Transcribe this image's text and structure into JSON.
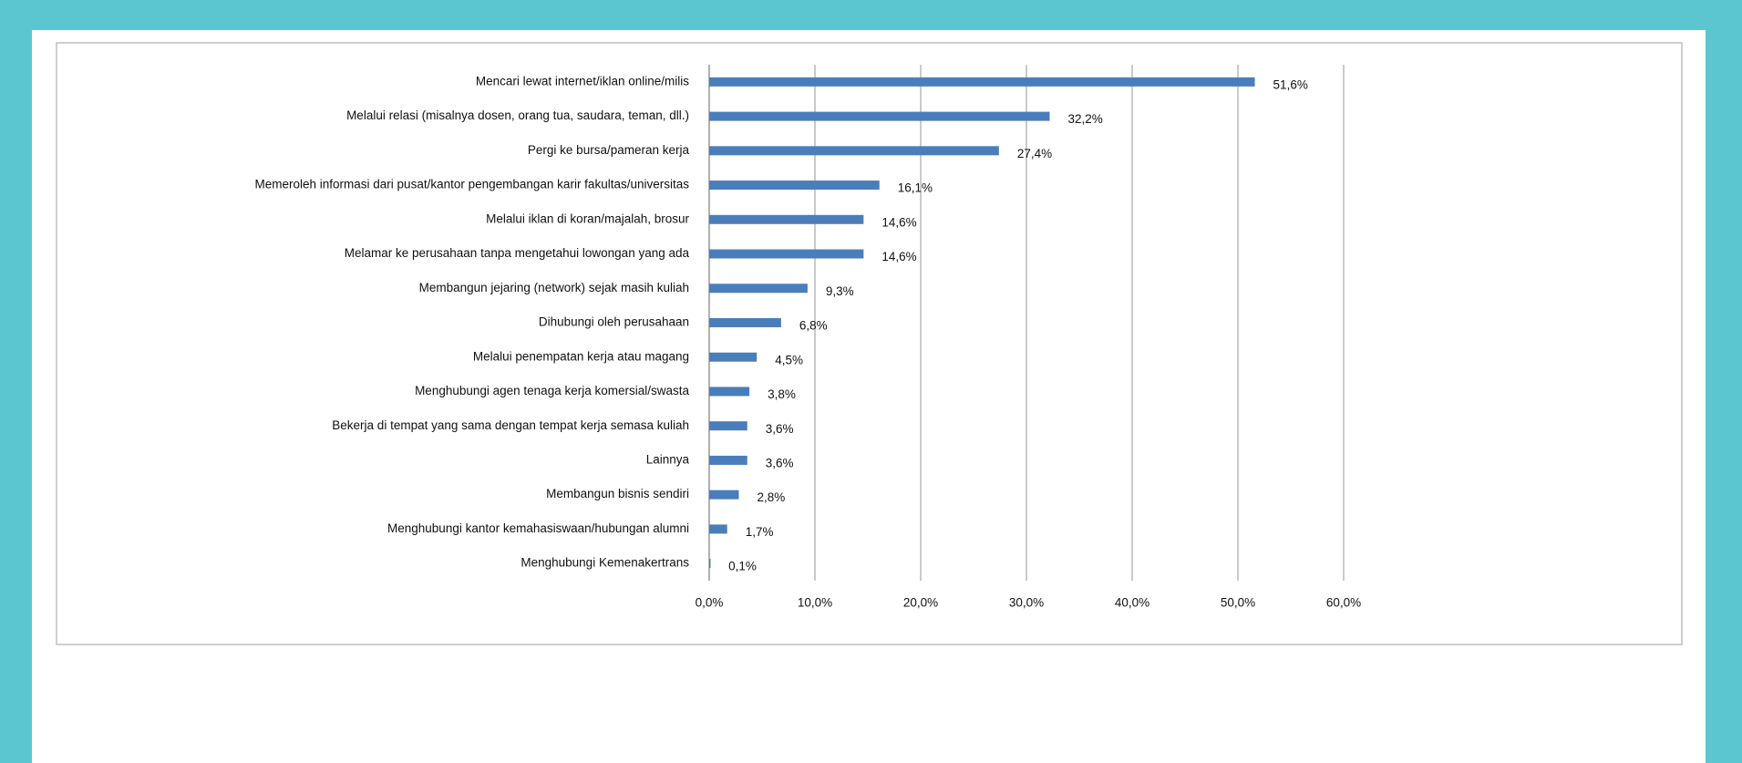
{
  "chart_data": {
    "type": "bar",
    "orientation": "horizontal",
    "categories": [
      "Mencari lewat internet/iklan online/milis",
      "Melalui relasi (misalnya dosen, orang tua, saudara, teman, dll.)",
      "Pergi ke bursa/pameran kerja",
      "Memeroleh informasi dari pusat/kantor  pengembangan karir fakultas/universitas",
      "Melalui iklan di koran/majalah,  brosur",
      "Melamar ke perusahaan tanpa mengetahui lowongan yang ada",
      "Membangun jejaring (network) sejak masih kuliah",
      "Dihubungi oleh perusahaan",
      "Melalui penempatan kerja atau magang",
      "Menghubungi agen tenaga kerja komersial/swasta",
      "Bekerja di tempat yang sama dengan tempat kerja semasa kuliah",
      "Lainnya",
      "Membangun bisnis sendiri",
      "Menghubungi kantor kemahasiswaan/hubungan  alumni",
      "Menghubungi Kemenakertrans"
    ],
    "values": [
      51.6,
      32.2,
      27.4,
      16.1,
      14.6,
      14.6,
      9.3,
      6.8,
      4.5,
      3.8,
      3.6,
      3.6,
      2.8,
      1.7,
      0.1
    ],
    "value_labels": [
      "51,6%",
      "32,2%",
      "27,4%",
      "16,1%",
      "14,6%",
      "14,6%",
      "9,3%",
      "6,8%",
      "4,5%",
      "3,8%",
      "3,6%",
      "3,6%",
      "2,8%",
      "1,7%",
      "0,1%"
    ],
    "color": "#4a7ebb",
    "xlim": [
      0,
      60
    ],
    "xticks": [
      {
        "value": 0,
        "label": "0,0%"
      },
      {
        "value": 10,
        "label": "10,0%"
      },
      {
        "value": 20,
        "label": "20,0%"
      },
      {
        "value": 30,
        "label": "30,0%"
      },
      {
        "value": 40,
        "label": "40,0%"
      },
      {
        "value": 50,
        "label": "50,0%"
      },
      {
        "value": 60,
        "label": "60,0%"
      }
    ],
    "grid": true
  }
}
